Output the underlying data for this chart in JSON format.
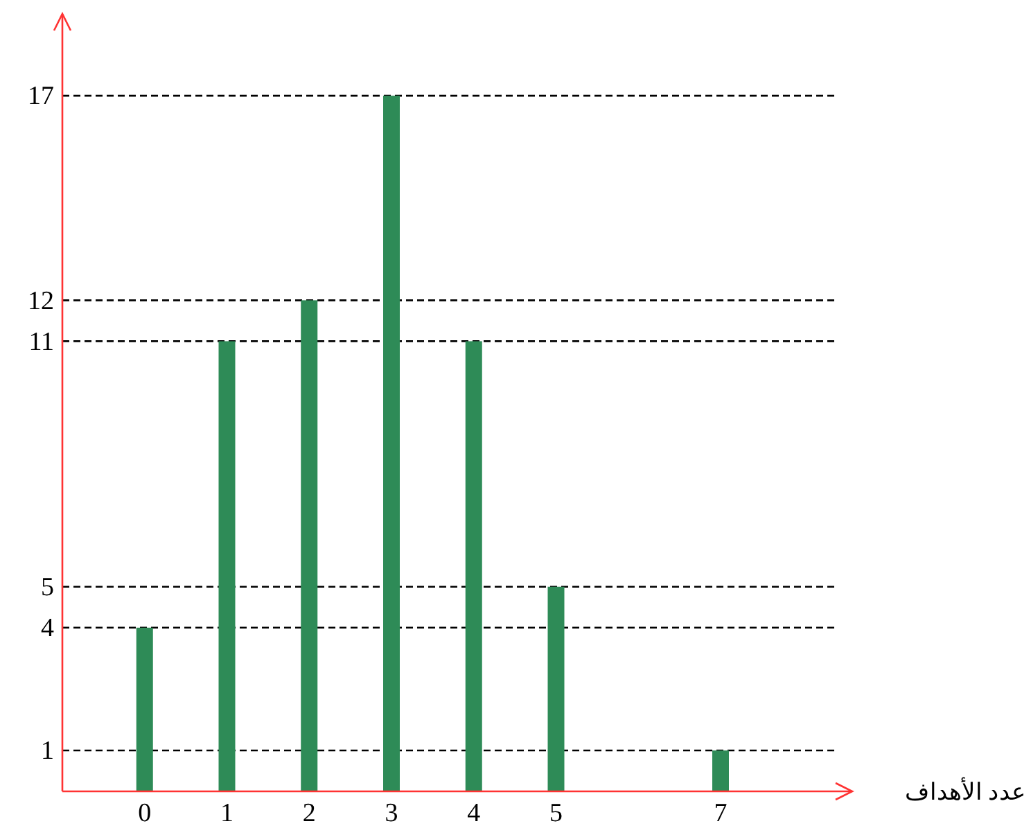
{
  "chart_data": {
    "type": "bar",
    "xlabel": "عدد الأهداف",
    "x": [
      0,
      1,
      2,
      3,
      4,
      5,
      7
    ],
    "values": [
      4,
      11,
      12,
      17,
      11,
      5,
      1
    ],
    "color": "#2e8b57",
    "xlim": [
      -1,
      8.6
    ],
    "xticks": [
      0,
      1,
      2,
      3,
      4,
      5,
      7
    ],
    "ylim": [
      0,
      19
    ],
    "yticks": [
      1,
      4,
      5,
      11,
      12,
      17
    ],
    "grid": "y"
  }
}
